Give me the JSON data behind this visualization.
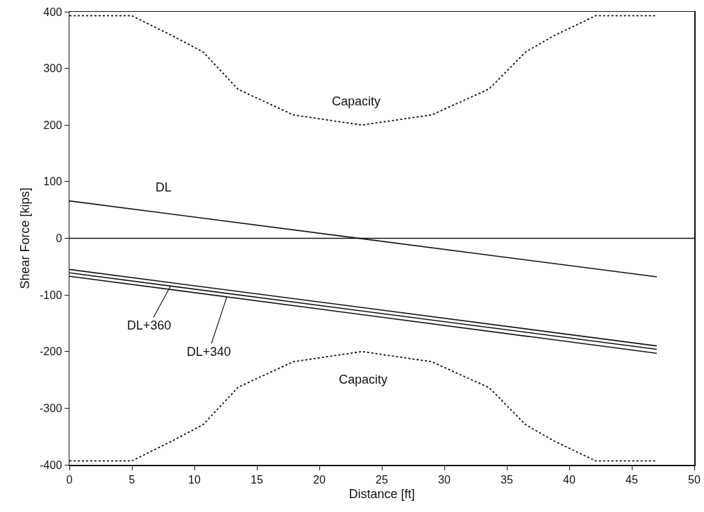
{
  "chart_data": {
    "type": "line",
    "xlabel": "Distance [ft]",
    "ylabel": "Shear Force [kips]",
    "xlim": [
      0,
      50
    ],
    "xticks": [
      0,
      5,
      10,
      15,
      20,
      25,
      30,
      35,
      40,
      45,
      50
    ],
    "ylim": [
      -400,
      400
    ],
    "yticks": [
      -400,
      -300,
      -200,
      -100,
      0,
      100,
      200,
      300,
      400
    ],
    "grid": false,
    "legend": false,
    "marker": "none",
    "series": [
      {
        "name": "Capacity",
        "color": "#111111",
        "line_style": "dotted",
        "x": [
          0,
          5,
          8.3,
          10.7,
          13.5,
          17.9,
          23.4,
          29,
          33.6,
          36.5,
          38.7,
          42.1,
          47
        ],
        "values": [
          393,
          393,
          357,
          329,
          263,
          218,
          200,
          218,
          264,
          329,
          357,
          393,
          393
        ]
      },
      {
        "name": "Capacity",
        "color": "#111111",
        "line_style": "dotted",
        "x": [
          0,
          5,
          8.3,
          10.7,
          13.5,
          17.9,
          23.4,
          29,
          33.6,
          36.5,
          38.7,
          42.1,
          47
        ],
        "values": [
          -393,
          -393,
          -357,
          -329,
          -263,
          -218,
          -200,
          -218,
          -264,
          -329,
          -357,
          -393,
          -393
        ]
      },
      {
        "name": "DL",
        "color": "#111111",
        "line_style": "solid",
        "x": [
          0,
          47
        ],
        "values": [
          66,
          -68
        ]
      },
      {
        "color": "#111111",
        "line_style": "solid",
        "x": [
          0,
          47
        ],
        "values": [
          -55,
          -190
        ]
      },
      {
        "color": "#111111",
        "line_style": "solid",
        "x": [
          0,
          47
        ],
        "values": [
          -61,
          -196
        ]
      },
      {
        "color": "#111111",
        "line_style": "solid",
        "x": [
          0,
          47
        ],
        "values": [
          -67,
          -203
        ]
      }
    ],
    "ref_lines": [
      {
        "axis": "y",
        "value": 0,
        "color": "#111111"
      }
    ],
    "annotations": [
      {
        "text": "DL+360",
        "x": 8.1,
        "y": -84
      },
      {
        "text": "DL+340",
        "x": 12.6,
        "y": -103
      }
    ]
  }
}
